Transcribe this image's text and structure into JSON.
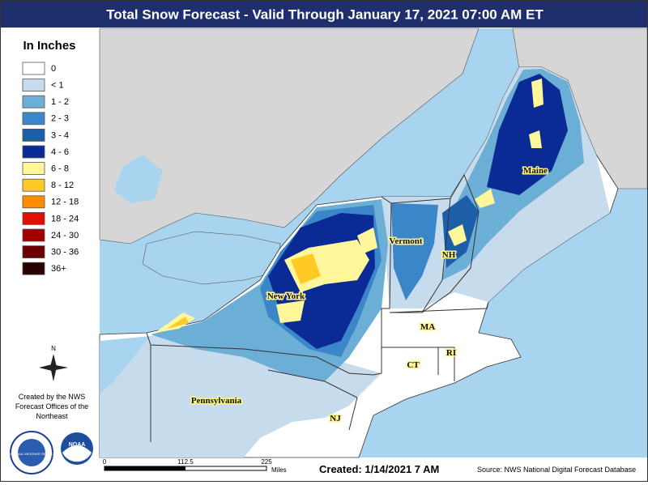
{
  "header": {
    "title": "Total Snow Forecast - Valid Through January 17, 2021 07:00 AM ET"
  },
  "legend": {
    "title": "In Inches",
    "items": [
      {
        "label": "0",
        "color": "#ffffff"
      },
      {
        "label": "< 1",
        "color": "#c6dbec"
      },
      {
        "label": "1 - 2",
        "color": "#6baed6"
      },
      {
        "label": "2 - 3",
        "color": "#3a86c8"
      },
      {
        "label": "3 - 4",
        "color": "#1c5fa8"
      },
      {
        "label": "4 - 6",
        "color": "#0a2a96"
      },
      {
        "label": "6 - 8",
        "color": "#fff79a"
      },
      {
        "label": "8 - 12",
        "color": "#ffc926"
      },
      {
        "label": "12 - 18",
        "color": "#ff8c00"
      },
      {
        "label": "18 - 24",
        "color": "#e01000"
      },
      {
        "label": "24 - 30",
        "color": "#a00000"
      },
      {
        "label": "30 - 36",
        "color": "#6b0000"
      },
      {
        "label": "36+",
        "color": "#2b0000"
      }
    ]
  },
  "compass": "N",
  "credits": [
    "Created by the NWS",
    "Forecast Offices of the",
    "Northeast"
  ],
  "logos": [
    "NATIONAL WEATHER SERVICE",
    "NOAA"
  ],
  "states": [
    "New York",
    "Vermont",
    "NH",
    "Maine",
    "MA",
    "CT",
    "RI",
    "Pennsylvania",
    "NJ"
  ],
  "scale": {
    "labels": [
      "0",
      "112.5",
      "225"
    ],
    "unit": "Miles"
  },
  "created": "Created:  1/14/2021 7 AM",
  "source": "Source: NWS National Digital Forecast Database"
}
